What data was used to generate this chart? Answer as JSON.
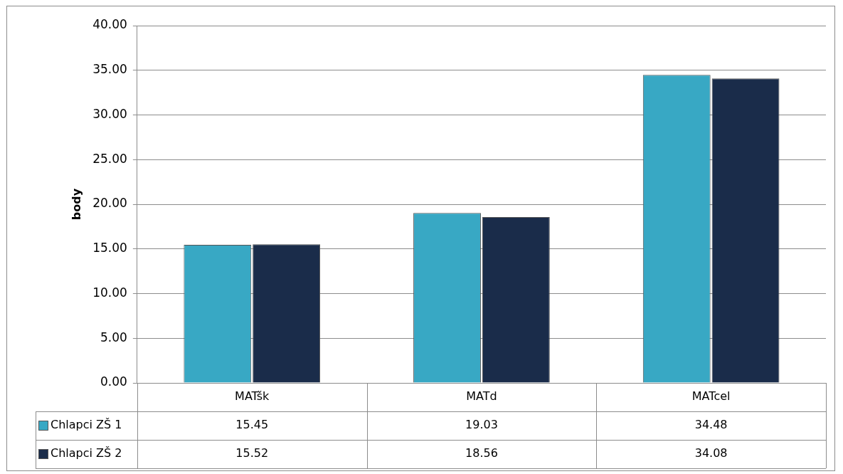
{
  "chart_data": {
    "type": "bar",
    "ylabel": "body",
    "categories": [
      "MATšk",
      "MATd",
      "MATcel"
    ],
    "series": [
      {
        "name": "Chlapci ZŠ 1",
        "color": "#38a8c4",
        "values": [
          15.45,
          19.03,
          34.48
        ]
      },
      {
        "name": "Chlapci ZŠ 2",
        "color": "#1a2c4a",
        "values": [
          15.52,
          18.56,
          34.08
        ]
      }
    ],
    "ylim": [
      0,
      40
    ],
    "yticks": [
      {
        "value": 0,
        "label": "0.00"
      },
      {
        "value": 5,
        "label": "5.00"
      },
      {
        "value": 10,
        "label": "10.00"
      },
      {
        "value": 15,
        "label": "15.00"
      },
      {
        "value": 20,
        "label": "20.00"
      },
      {
        "value": 25,
        "label": "25.00"
      },
      {
        "value": 30,
        "label": "30.00"
      },
      {
        "value": 35,
        "label": "35.00"
      },
      {
        "value": 40,
        "label": "40.00"
      }
    ],
    "grid": "y",
    "legend": "bottom",
    "data_labels": true
  }
}
